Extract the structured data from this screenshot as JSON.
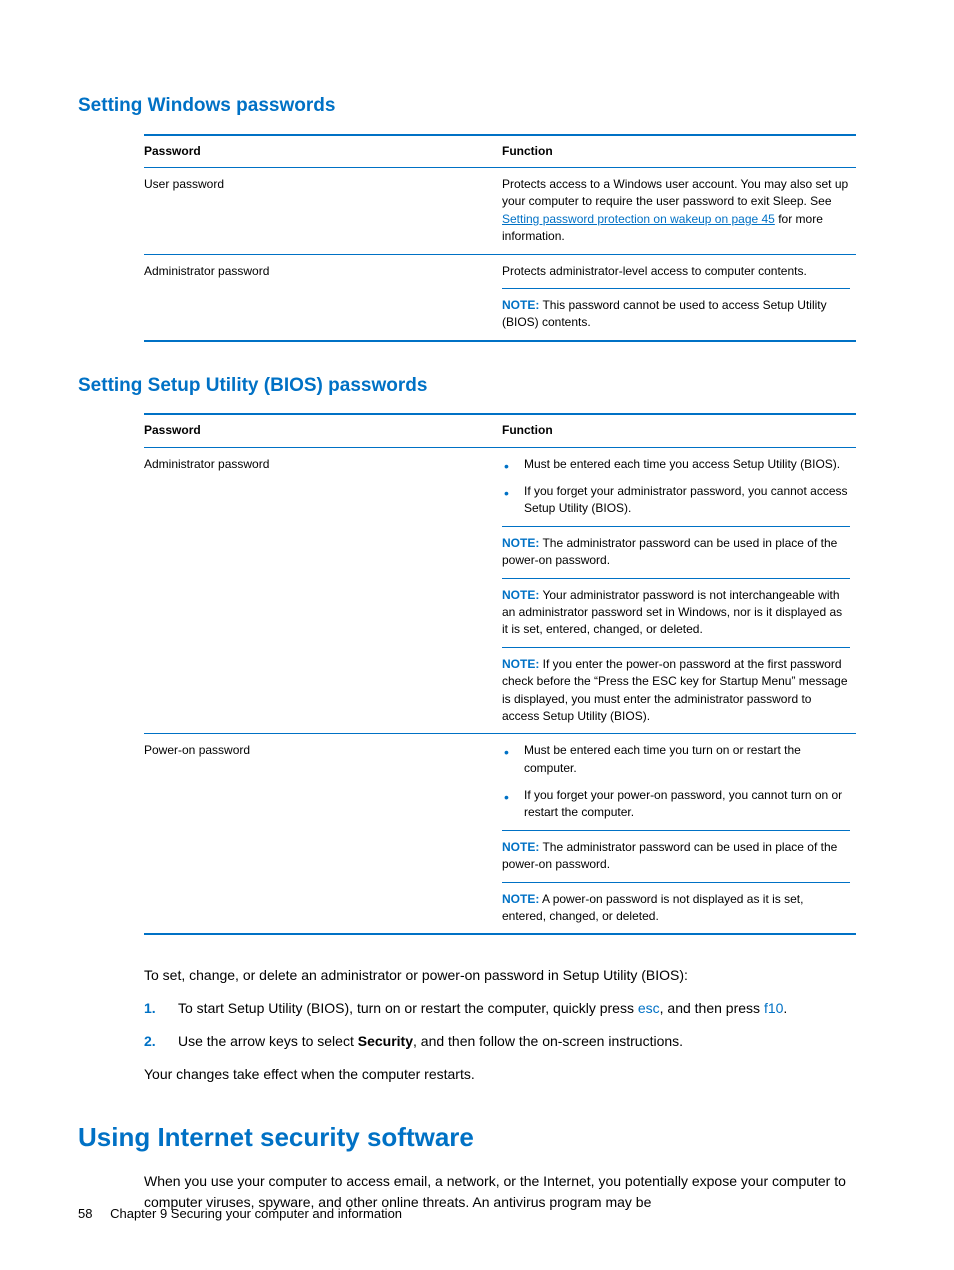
{
  "colors": {
    "accent": "#0071c5",
    "text": "#000000",
    "background": "#ffffff"
  },
  "section1": {
    "heading": "Setting Windows passwords",
    "table": {
      "headers": {
        "password": "Password",
        "function": "Function"
      },
      "rows": [
        {
          "password": "User password",
          "function_pre": "Protects access to a Windows user account. You may also set up your computer to require the user password to exit Sleep. See ",
          "function_link": "Setting password protection on wakeup on page 45",
          "function_post": " for more information."
        },
        {
          "password": "Administrator password",
          "function_line1": "Protects administrator-level access to computer contents.",
          "note_label": "NOTE:",
          "note_text": "   This password cannot be used to access Setup Utility (BIOS) contents."
        }
      ]
    }
  },
  "section2": {
    "heading": "Setting Setup Utility (BIOS) passwords",
    "table": {
      "headers": {
        "password": "Password",
        "function": "Function"
      },
      "rows": [
        {
          "password": "Administrator password",
          "bullets": [
            "Must be entered each time you access Setup Utility (BIOS).",
            "If you forget your administrator password, you cannot access Setup Utility (BIOS)."
          ],
          "notes": [
            {
              "label": "NOTE:",
              "text": "   The administrator password can be used in place of the power-on password."
            },
            {
              "label": "NOTE:",
              "text": "   Your administrator password is not interchangeable with an administrator password set in Windows, nor is it displayed as it is set, entered, changed, or deleted."
            },
            {
              "label": "NOTE:",
              "text": "   If you enter the power-on password at the first password check before the “Press the ESC key for Startup Menu” message is displayed, you must enter the administrator password to access Setup Utility (BIOS)."
            }
          ]
        },
        {
          "password": "Power-on password",
          "bullets": [
            "Must be entered each time you turn on or restart the computer.",
            "If you forget your power-on password, you cannot turn on or restart the computer."
          ],
          "notes": [
            {
              "label": "NOTE:",
              "text": "   The administrator password can be used in place of the power-on password."
            },
            {
              "label": "NOTE:",
              "text": "   A power-on password is not displayed as it is set, entered, changed, or deleted."
            }
          ]
        }
      ]
    }
  },
  "body": {
    "intro": "To set, change, or delete an administrator or power-on password in Setup Utility (BIOS):",
    "steps": [
      {
        "num": "1.",
        "pre": "To start Setup Utility (BIOS), turn on or restart the computer, quickly press ",
        "kbd1": "esc",
        "mid": ", and then press ",
        "kbd2": "f10",
        "post": "."
      },
      {
        "num": "2.",
        "pre": "Use the arrow keys to select ",
        "bold": "Security",
        "post": ", and then follow the on-screen instructions."
      }
    ],
    "closing": "Your changes take effect when the computer restarts."
  },
  "section3": {
    "heading": "Using Internet security software",
    "para": "When you use your computer to access email, a network, or the Internet, you potentially expose your computer to computer viruses, spyware, and other online threats. An antivirus program may be"
  },
  "footer": {
    "page": "58",
    "chapter": "Chapter 9   Securing your computer and information"
  }
}
